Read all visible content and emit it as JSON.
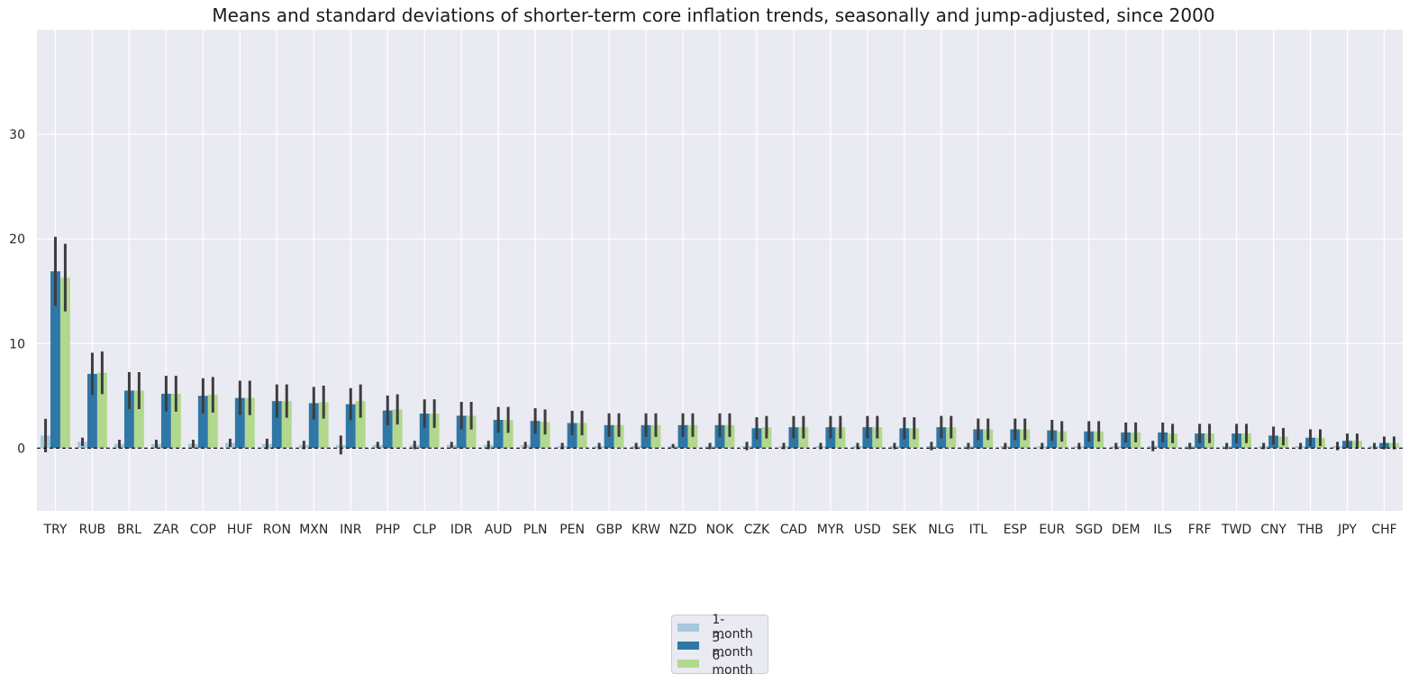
{
  "chart_data": {
    "type": "bar",
    "title": "Means and standard deviations of shorter-term core inflation trends, seasonally and jump-adjusted, since 2000",
    "xlabel": "",
    "ylabel": "",
    "ylim": [
      -6,
      40
    ],
    "yticks": [
      0,
      10,
      20,
      30
    ],
    "grid": true,
    "legend_position": "bottom-center",
    "reference_line": 0,
    "categories": [
      "TRY",
      "RUB",
      "BRL",
      "ZAR",
      "COP",
      "HUF",
      "RON",
      "MXN",
      "INR",
      "PHP",
      "CLP",
      "IDR",
      "AUD",
      "PLN",
      "PEN",
      "GBP",
      "KRW",
      "NZD",
      "NOK",
      "CZK",
      "CAD",
      "MYR",
      "USD",
      "SEK",
      "NLG",
      "ITL",
      "ESP",
      "EUR",
      "SGD",
      "DEM",
      "ILS",
      "FRF",
      "TWD",
      "CNY",
      "THB",
      "JPY",
      "CHF"
    ],
    "series": [
      {
        "name": "1-month",
        "color": "#a6c8dd",
        "values": [
          1.2,
          0.6,
          0.4,
          0.4,
          0.4,
          0.5,
          0.4,
          0.3,
          0.3,
          0.3,
          0.3,
          0.3,
          0.3,
          0.3,
          0.2,
          0.2,
          0.2,
          0.2,
          0.2,
          0.2,
          0.2,
          0.2,
          0.2,
          0.2,
          0.2,
          0.2,
          0.2,
          0.2,
          0.2,
          0.2,
          0.2,
          0.2,
          0.2,
          0.2,
          0.2,
          0.2,
          0.2
        ],
        "errors": [
          1.6,
          0.4,
          0.4,
          0.4,
          0.4,
          0.4,
          0.5,
          0.4,
          0.9,
          0.3,
          0.4,
          0.3,
          0.4,
          0.3,
          0.3,
          0.3,
          0.3,
          0.2,
          0.3,
          0.4,
          0.3,
          0.3,
          0.3,
          0.3,
          0.4,
          0.3,
          0.3,
          0.3,
          0.3,
          0.3,
          0.5,
          0.3,
          0.3,
          0.3,
          0.3,
          0.4,
          0.3
        ]
      },
      {
        "name": "3-month",
        "color": "#2f77a7",
        "values": [
          16.9,
          7.1,
          5.5,
          5.2,
          5.0,
          4.8,
          4.5,
          4.3,
          4.2,
          3.6,
          3.3,
          3.1,
          2.7,
          2.6,
          2.4,
          2.2,
          2.2,
          2.2,
          2.2,
          1.9,
          2.0,
          2.0,
          2.0,
          1.9,
          2.0,
          1.8,
          1.8,
          1.7,
          1.6,
          1.5,
          1.5,
          1.4,
          1.4,
          1.2,
          1.0,
          0.7,
          0.5
        ]
      },
      {
        "name": "6-month",
        "color": "#b2d88e",
        "values": [
          16.3,
          7.2,
          5.5,
          5.2,
          5.1,
          4.8,
          4.5,
          4.4,
          4.5,
          3.7,
          3.3,
          3.1,
          2.7,
          2.5,
          2.4,
          2.2,
          2.2,
          2.2,
          2.2,
          2.0,
          2.0,
          2.0,
          2.0,
          1.9,
          2.0,
          1.8,
          1.8,
          1.6,
          1.6,
          1.5,
          1.4,
          1.4,
          1.4,
          1.1,
          1.0,
          0.7,
          0.5
        ]
      }
    ]
  },
  "legend": {
    "items": [
      {
        "label": "1-month",
        "color": "#a6c8dd"
      },
      {
        "label": "3-month",
        "color": "#2f77a7"
      },
      {
        "label": "6-month",
        "color": "#b2d88e"
      }
    ]
  }
}
